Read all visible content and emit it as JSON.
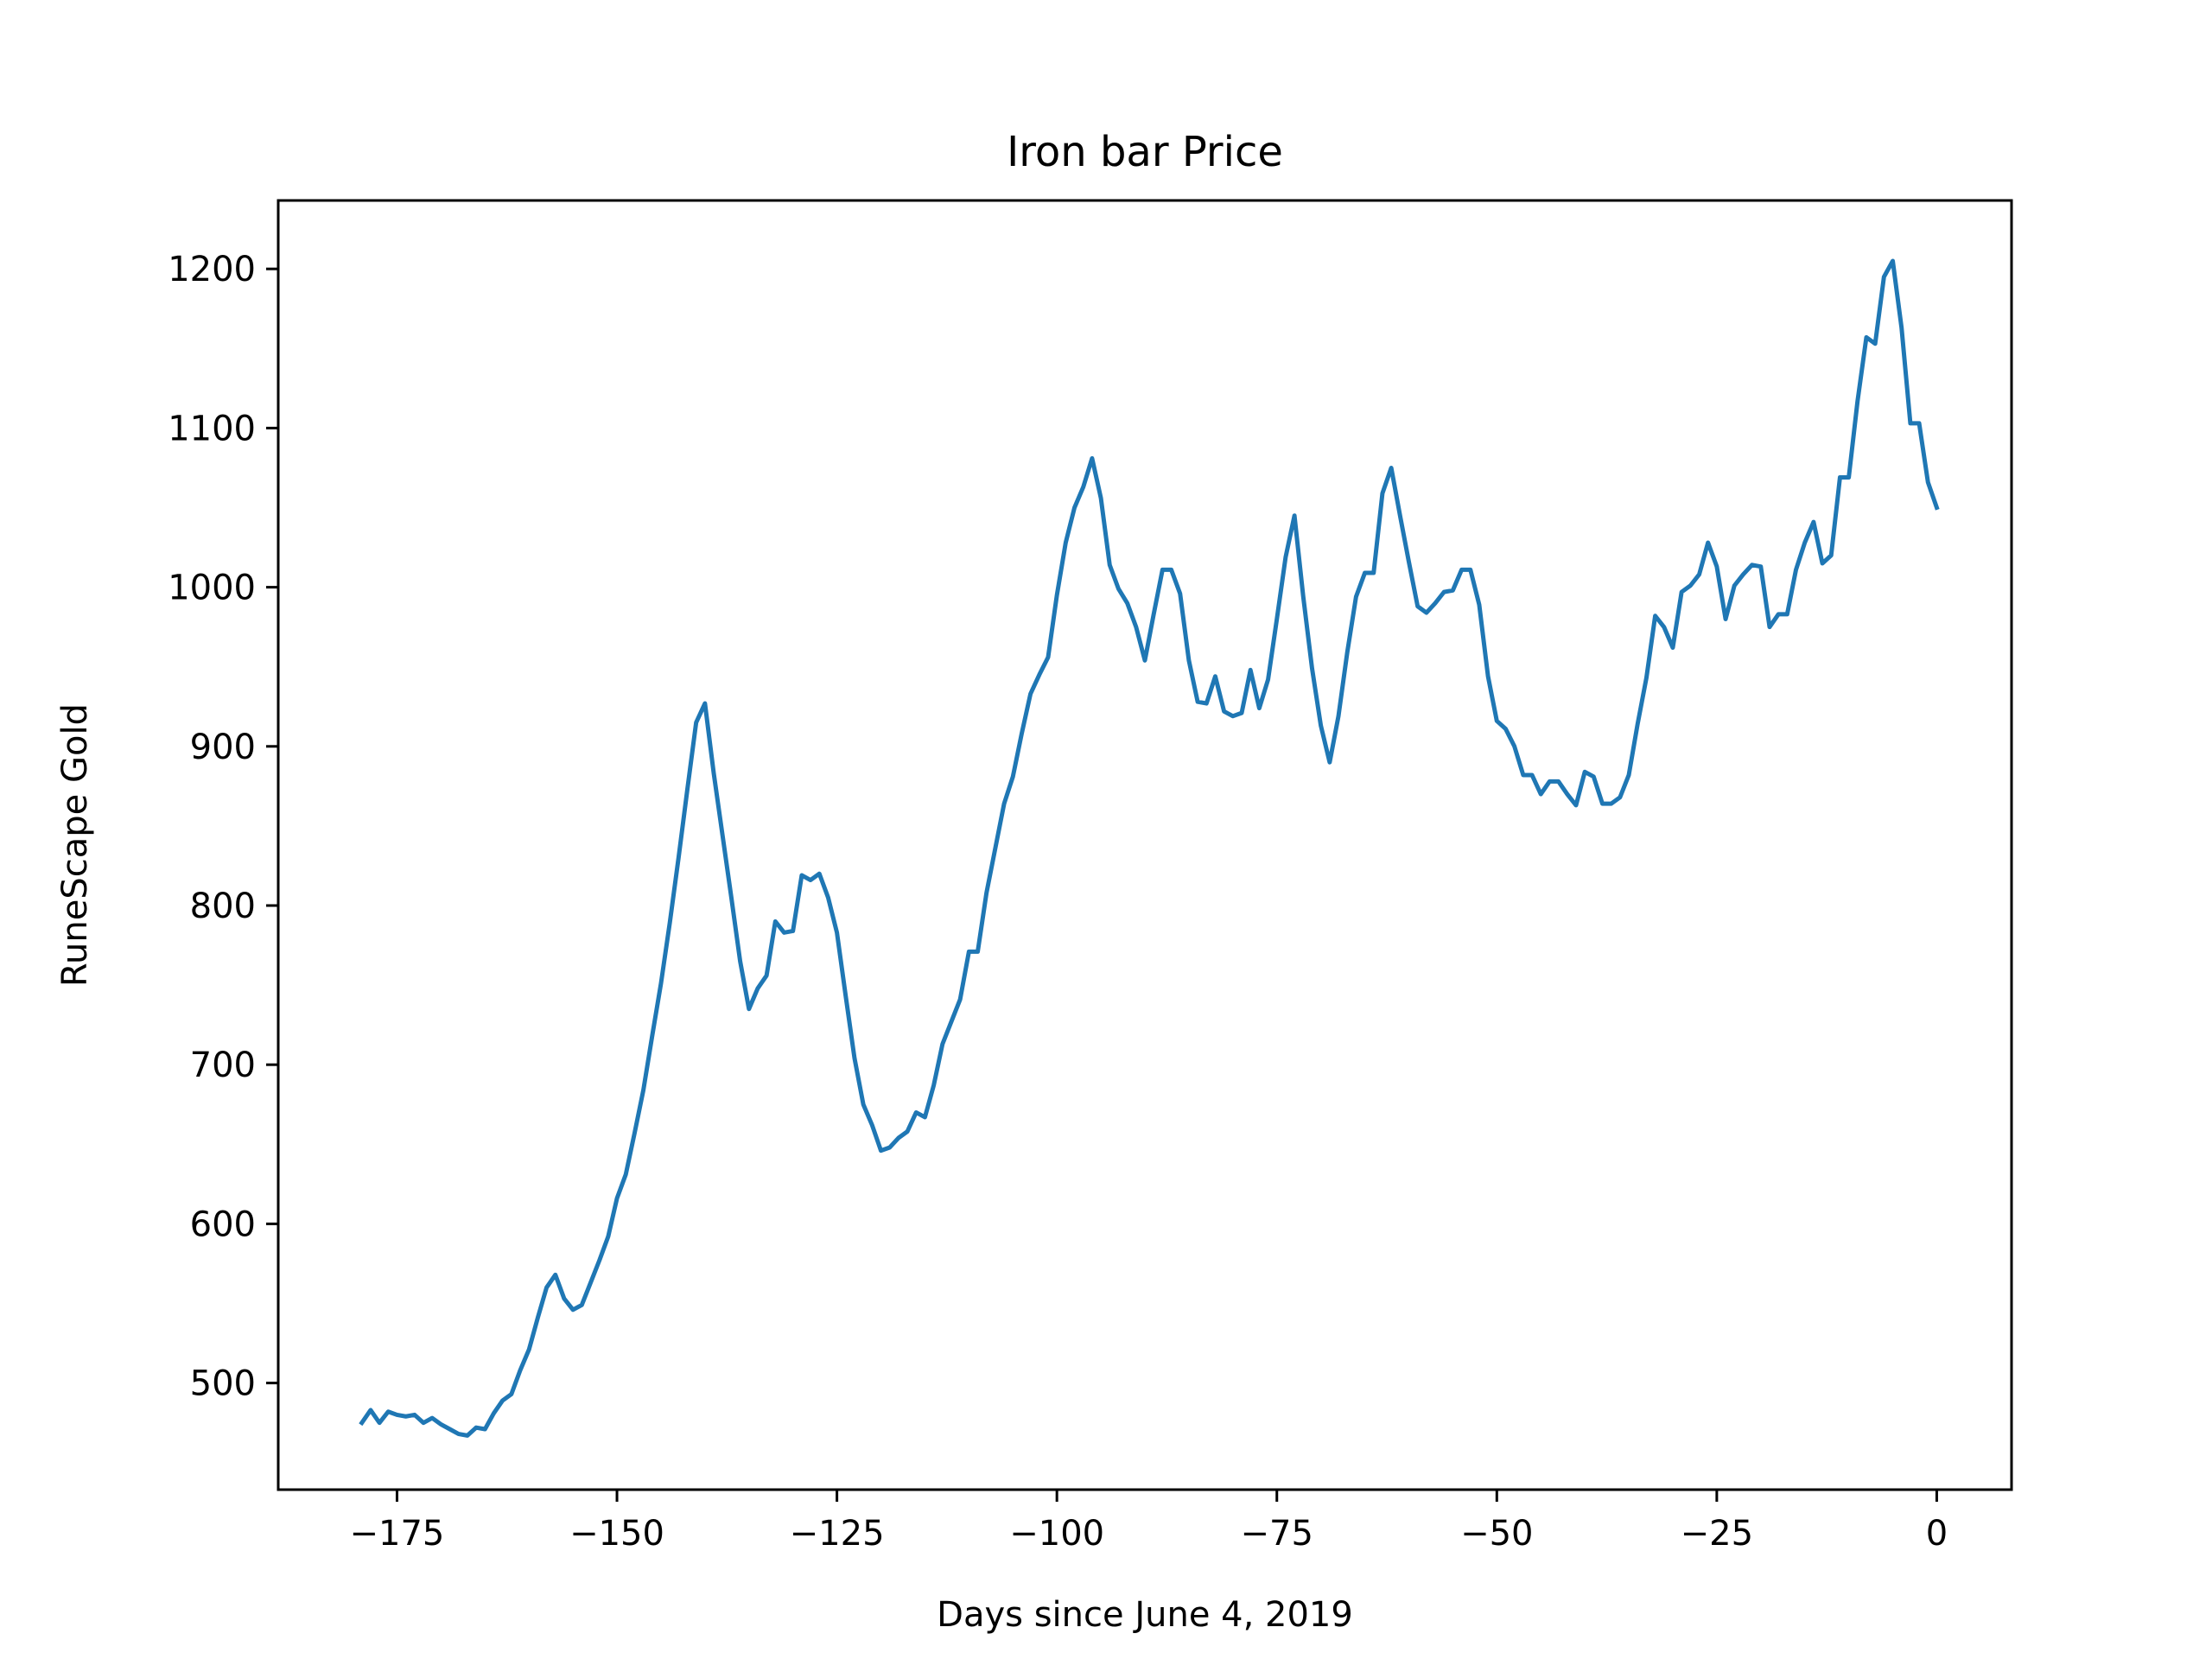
{
  "chart_data": {
    "type": "line",
    "title": "Iron bar Price",
    "xlabel": "Days since June 4, 2019",
    "ylabel": "RuneScape Gold",
    "xlim": [
      -188.5,
      8.5
    ],
    "ylim": [
      433,
      1243
    ],
    "xticks": [
      -175,
      -150,
      -125,
      -100,
      -75,
      -50,
      -25,
      0
    ],
    "xtick_labels": [
      "−175",
      "−150",
      "−125",
      "−100",
      "−75",
      "−50",
      "−25",
      "0"
    ],
    "yticks": [
      500,
      600,
      700,
      800,
      900,
      1000,
      1100,
      1200
    ],
    "ytick_labels": [
      "500",
      "600",
      "700",
      "800",
      "900",
      "1000",
      "1100",
      "1200"
    ],
    "grid": false,
    "series": [
      {
        "color": "#1f77b4",
        "x": [
          -179,
          -178,
          -177,
          -176,
          -175,
          -174,
          -173,
          -172,
          -171,
          -170,
          -169,
          -168,
          -167,
          -166,
          -165,
          -164,
          -163,
          -162,
          -161,
          -160,
          -159,
          -158,
          -157,
          -156,
          -155,
          -154,
          -153,
          -152,
          -151,
          -150,
          -149,
          -148,
          -147,
          -146,
          -145,
          -144,
          -143,
          -142,
          -141,
          -140,
          -139,
          -138,
          -137,
          -136,
          -135,
          -134,
          -133,
          -132,
          -131,
          -130,
          -129,
          -128,
          -127,
          -126,
          -125,
          -124,
          -123,
          -122,
          -121,
          -120,
          -119,
          -118,
          -117,
          -116,
          -115,
          -114,
          -113,
          -112,
          -111,
          -110,
          -109,
          -108,
          -107,
          -106,
          -105,
          -104,
          -103,
          -102,
          -101,
          -100,
          -99,
          -98,
          -97,
          -96,
          -95,
          -94,
          -93,
          -92,
          -91,
          -90,
          -89,
          -88,
          -87,
          -86,
          -85,
          -84,
          -83,
          -82,
          -81,
          -80,
          -79,
          -78,
          -77,
          -76,
          -75,
          -74,
          -73,
          -72,
          -71,
          -70,
          -69,
          -68,
          -67,
          -66,
          -65,
          -64,
          -63,
          -62,
          -61,
          -60,
          -59,
          -58,
          -57,
          -56,
          -55,
          -54,
          -53,
          -52,
          -51,
          -50,
          -49,
          -48,
          -47,
          -46,
          -45,
          -44,
          -43,
          -42,
          -41,
          -40,
          -39,
          -38,
          -37,
          -36,
          -35,
          -34,
          -33,
          -32,
          -31,
          -30,
          -29,
          -28,
          -27,
          -26,
          -25,
          -24,
          -23,
          -22,
          -21,
          -20,
          -19,
          -18,
          -17,
          -16,
          -15,
          -14,
          -13,
          -12,
          -11,
          -10,
          -9,
          -8,
          -7,
          -6,
          -5,
          -4,
          -3,
          -2,
          -1,
          0
        ],
        "values": [
          475,
          483,
          475,
          482,
          480,
          479,
          480,
          475,
          478,
          474,
          471,
          468,
          467,
          472,
          471,
          481,
          489,
          493,
          508,
          521,
          541,
          560,
          568,
          553,
          546,
          549,
          563,
          577,
          592,
          616,
          631,
          657,
          684,
          718,
          751,
          789,
          830,
          873,
          915,
          927,
          883,
          844,
          805,
          765,
          735,
          748,
          756,
          790,
          783,
          784,
          819,
          816,
          820,
          805,
          783,
          743,
          704,
          675,
          662,
          646,
          648,
          654,
          658,
          670,
          667,
          687,
          713,
          727,
          741,
          771,
          771,
          808,
          836,
          864,
          881,
          908,
          933,
          945,
          956,
          995,
          1028,
          1050,
          1063,
          1081,
          1056,
          1014,
          999,
          990,
          975,
          954,
          983,
          1011,
          1011,
          996,
          954,
          928,
          927,
          944,
          922,
          919,
          921,
          948,
          924,
          942,
          980,
          1019,
          1045,
          994,
          949,
          913,
          890,
          919,
          959,
          994,
          1009,
          1009,
          1059,
          1075,
          1045,
          1016,
          988,
          984,
          990,
          997,
          998,
          1011,
          1011,
          989,
          944,
          916,
          911,
          900,
          882,
          882,
          870,
          878,
          878,
          870,
          863,
          884,
          881,
          864,
          864,
          868,
          882,
          914,
          943,
          982,
          975,
          962,
          997,
          1001,
          1008,
          1028,
          1013,
          980,
          1001,
          1008,
          1014,
          1013,
          975,
          983,
          983,
          1011,
          1028,
          1041,
          1015,
          1020,
          1069,
          1069,
          1117,
          1157,
          1153,
          1195,
          1205,
          1163,
          1103,
          1103,
          1066,
          1050
        ]
      }
    ]
  }
}
